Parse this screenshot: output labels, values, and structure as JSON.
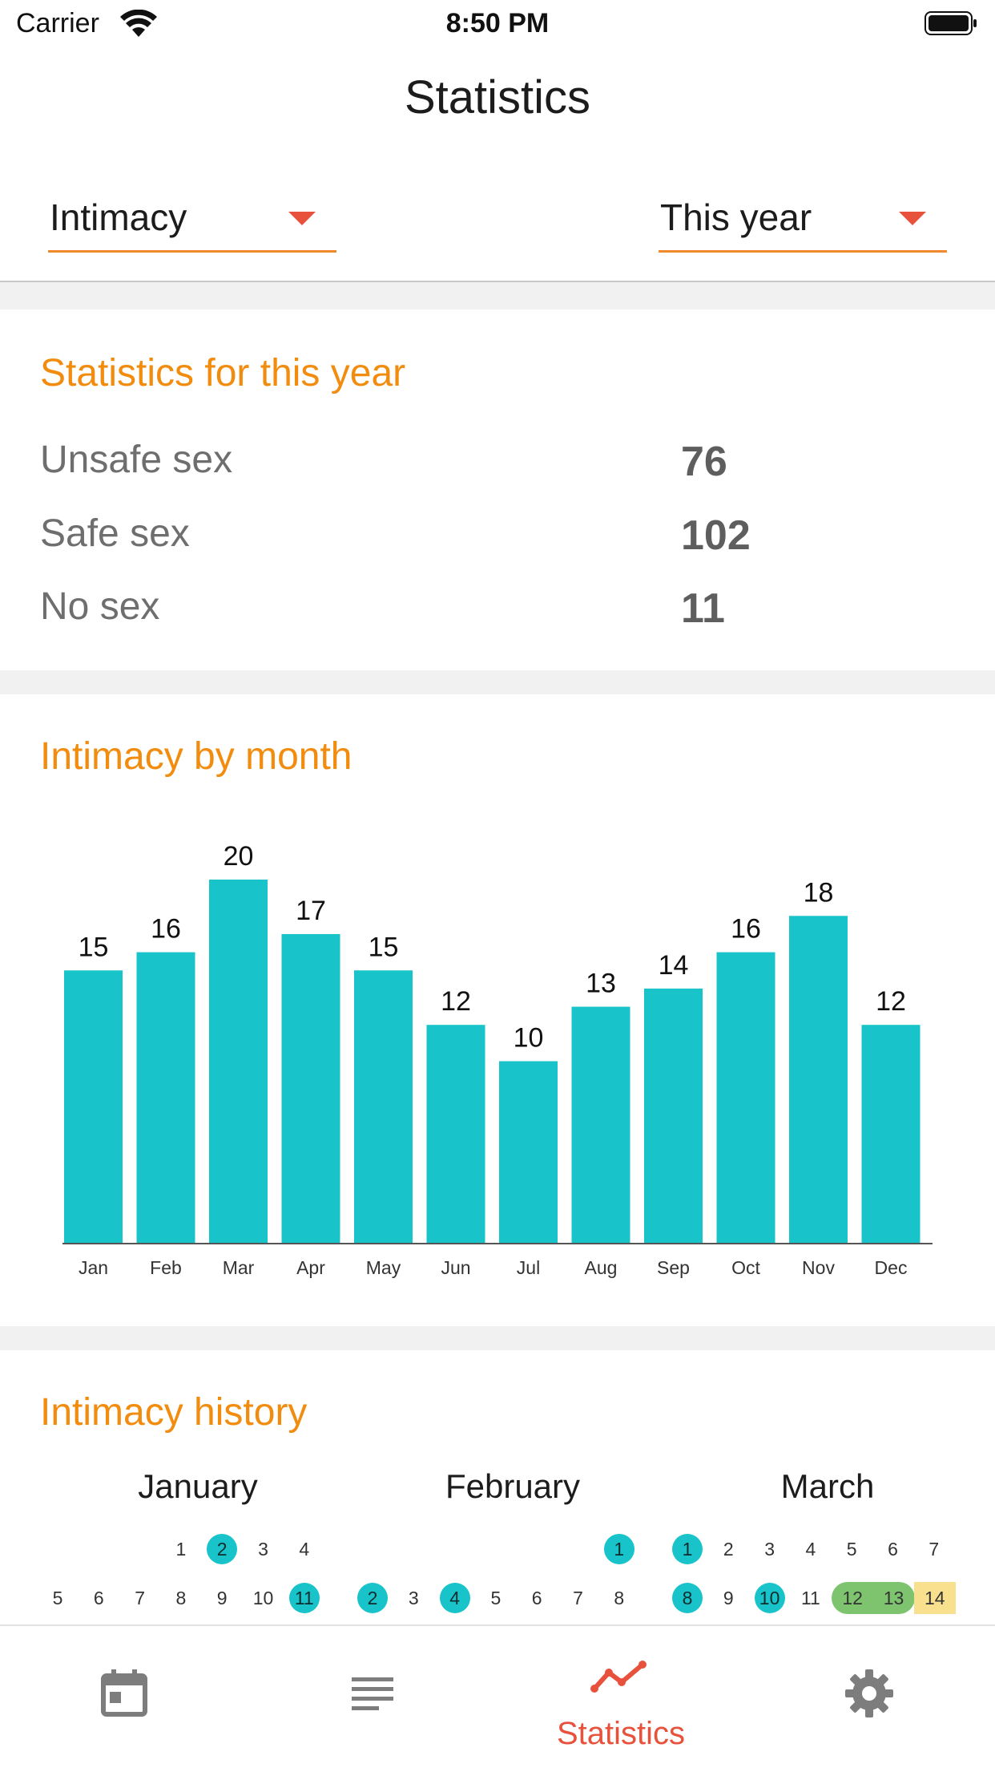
{
  "status_bar": {
    "carrier": "Carrier",
    "time": "8:50 PM"
  },
  "header": {
    "title": "Statistics"
  },
  "filters": {
    "category": "Intimacy",
    "period": "This year"
  },
  "summary": {
    "title": "Statistics for this year",
    "rows": [
      {
        "label": "Unsafe sex",
        "value": "76"
      },
      {
        "label": "Safe sex",
        "value": "102"
      },
      {
        "label": "No sex",
        "value": "11"
      }
    ]
  },
  "monthly": {
    "title": "Intimacy by month",
    "chart_data": {
      "type": "bar",
      "categories": [
        "Jan",
        "Feb",
        "Mar",
        "Apr",
        "May",
        "Jun",
        "Jul",
        "Aug",
        "Sep",
        "Oct",
        "Nov",
        "Dec"
      ],
      "values": [
        15,
        16,
        20,
        17,
        15,
        12,
        10,
        13,
        14,
        16,
        18,
        12
      ],
      "ylim": [
        0,
        20
      ],
      "grid": false,
      "bar_color": "#18c3c9"
    }
  },
  "history": {
    "title": "Intimacy history",
    "months": [
      {
        "name": "January",
        "days": [
          [
            "",
            "",
            "",
            "1",
            "2",
            "3",
            "4"
          ],
          [
            "5",
            "6",
            "7",
            "8",
            "9",
            "10",
            "11"
          ]
        ],
        "marked": [
          "2",
          "11"
        ]
      },
      {
        "name": "February",
        "days": [
          [
            "",
            "",
            "",
            "",
            "",
            "",
            "1"
          ],
          [
            "2",
            "3",
            "4",
            "5",
            "6",
            "7",
            "8"
          ]
        ],
        "marked": [
          "1",
          "2",
          "4"
        ]
      },
      {
        "name": "March",
        "days": [
          [
            "1",
            "2",
            "3",
            "4",
            "5",
            "6",
            "7"
          ],
          [
            "8",
            "9",
            "10",
            "11",
            "12",
            "13",
            "14"
          ]
        ],
        "marked": [
          "1",
          "8",
          "10"
        ],
        "range_green": [
          "12",
          "13"
        ],
        "range_yellow": [
          "14"
        ]
      }
    ]
  },
  "tabbar": {
    "items": [
      {
        "icon": "calendar-icon"
      },
      {
        "icon": "list-icon"
      },
      {
        "icon": "statistics-icon",
        "label": "Statistics",
        "active": true
      },
      {
        "icon": "gear-icon"
      }
    ]
  },
  "colors": {
    "accent": "#f28c0f",
    "active_tab": "#e8523d",
    "bar": "#18c3c9"
  }
}
